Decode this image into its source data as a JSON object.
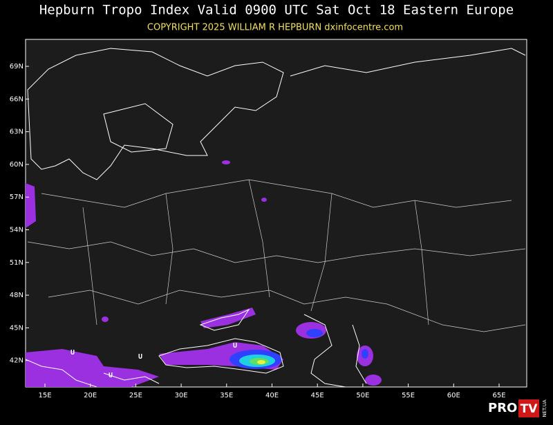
{
  "header": {
    "title": "Hepburn Tropo Index Valid 0900 UTC Sat Oct 18 Eastern Europe",
    "copyright": "COPYRIGHT 2025  WILLIAM R HEPBURN  dxinfocentre.com"
  },
  "map": {
    "lat_labels": [
      "69N",
      "66N",
      "63N",
      "60N",
      "57N",
      "54N",
      "51N",
      "48N",
      "45N",
      "42N"
    ],
    "lon_labels": [
      "15E",
      "20E",
      "25E",
      "30E",
      "35E",
      "40E",
      "45E",
      "50E",
      "55E",
      "60E",
      "65E"
    ],
    "markers": [
      "U",
      "U",
      "U",
      "U"
    ]
  },
  "watermark": {
    "brand": "PRO",
    "badge": "TV",
    "domain": "NET.UA"
  }
}
